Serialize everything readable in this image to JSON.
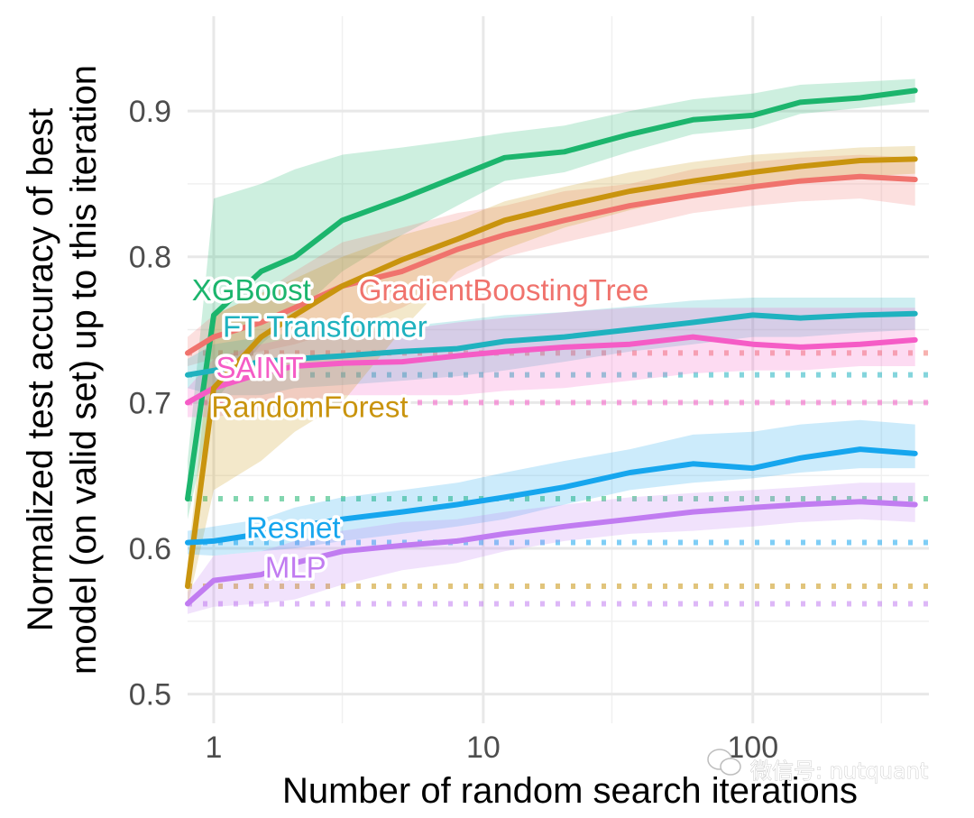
{
  "chart_data": {
    "type": "line",
    "title": "",
    "xlabel": "Number of random search iterations",
    "ylabel_lines": [
      "Normalized test accuracy of best",
      "model (on valid set) up to this iteration"
    ],
    "x_scale": "log",
    "xlim": [
      0.8,
      450
    ],
    "ylim": [
      0.48,
      0.965
    ],
    "x_ticks": [
      1,
      10,
      100
    ],
    "x_tick_labels": [
      "1",
      "10",
      "100"
    ],
    "y_ticks": [
      0.5,
      0.6,
      0.7,
      0.8,
      0.9
    ],
    "y_tick_labels": [
      "0.5",
      "0.6",
      "0.7",
      "0.8",
      "0.9"
    ],
    "grid": true,
    "legend": "direct labels",
    "series": [
      {
        "name": "XGBoost",
        "color": "#1cb56d",
        "baseline": 0.634,
        "x": [
          0.8,
          1,
          1.5,
          2,
          3,
          5,
          8,
          12,
          20,
          35,
          60,
          100,
          150,
          250,
          400
        ],
        "y": [
          0.634,
          0.76,
          0.79,
          0.8,
          0.825,
          0.84,
          0.855,
          0.868,
          0.872,
          0.884,
          0.894,
          0.897,
          0.906,
          0.909,
          0.914
        ],
        "lower": [
          0.62,
          0.7,
          0.74,
          0.76,
          0.79,
          0.815,
          0.835,
          0.852,
          0.858,
          0.872,
          0.884,
          0.888,
          0.898,
          0.902,
          0.906
        ],
        "upper": [
          0.66,
          0.84,
          0.85,
          0.86,
          0.87,
          0.875,
          0.88,
          0.885,
          0.89,
          0.9,
          0.908,
          0.912,
          0.918,
          0.92,
          0.922
        ],
        "label_at": [
          0.83,
          0.77
        ]
      },
      {
        "name": "GradientBoostingTree",
        "color": "#f0736d",
        "baseline": 0.734,
        "x": [
          0.8,
          1,
          1.5,
          2,
          3,
          5,
          8,
          12,
          20,
          35,
          60,
          100,
          150,
          250,
          400
        ],
        "y": [
          0.734,
          0.745,
          0.755,
          0.765,
          0.78,
          0.79,
          0.805,
          0.815,
          0.825,
          0.835,
          0.842,
          0.848,
          0.852,
          0.855,
          0.853
        ],
        "lower": [
          0.725,
          0.73,
          0.735,
          0.74,
          0.75,
          0.765,
          0.785,
          0.8,
          0.81,
          0.82,
          0.83,
          0.835,
          0.838,
          0.84,
          0.835
        ],
        "upper": [
          0.745,
          0.76,
          0.775,
          0.79,
          0.81,
          0.82,
          0.83,
          0.835,
          0.845,
          0.85,
          0.86,
          0.865,
          0.868,
          0.87,
          0.868
        ],
        "label_at": [
          3.45,
          0.77
        ]
      },
      {
        "name": "FT Transformer",
        "color": "#1fb2bf",
        "baseline": 0.719,
        "x": [
          0.8,
          1,
          1.5,
          2,
          3,
          5,
          8,
          12,
          20,
          35,
          60,
          100,
          150,
          250,
          400
        ],
        "y": [
          0.719,
          0.722,
          0.728,
          0.73,
          0.732,
          0.735,
          0.737,
          0.742,
          0.745,
          0.75,
          0.755,
          0.76,
          0.758,
          0.76,
          0.761
        ],
        "lower": [
          0.71,
          0.705,
          0.705,
          0.71,
          0.712,
          0.715,
          0.718,
          0.722,
          0.728,
          0.735,
          0.74,
          0.745,
          0.745,
          0.748,
          0.75
        ],
        "upper": [
          0.73,
          0.74,
          0.745,
          0.748,
          0.75,
          0.752,
          0.756,
          0.76,
          0.762,
          0.766,
          0.77,
          0.772,
          0.772,
          0.772,
          0.772
        ],
        "label_at": [
          1.08,
          0.745
        ]
      },
      {
        "name": "SAINT",
        "color": "#f55cc6",
        "baseline": 0.7,
        "x": [
          0.8,
          1,
          1.5,
          2,
          3,
          5,
          8,
          12,
          20,
          35,
          60,
          100,
          150,
          250,
          400
        ],
        "y": [
          0.7,
          0.71,
          0.72,
          0.725,
          0.727,
          0.728,
          0.732,
          0.735,
          0.738,
          0.74,
          0.745,
          0.74,
          0.738,
          0.74,
          0.743
        ],
        "lower": [
          0.69,
          0.69,
          0.695,
          0.7,
          0.705,
          0.705,
          0.705,
          0.708,
          0.71,
          0.715,
          0.72,
          0.722,
          0.722,
          0.725,
          0.725
        ],
        "upper": [
          0.71,
          0.73,
          0.74,
          0.745,
          0.748,
          0.75,
          0.755,
          0.758,
          0.762,
          0.765,
          0.765,
          0.765,
          0.765,
          0.765,
          0.765
        ],
        "label_at": [
          1.02,
          0.717
        ]
      },
      {
        "name": "RandomForest",
        "color": "#c9940e",
        "baseline": 0.574,
        "x": [
          0.8,
          1,
          1.5,
          2,
          3,
          5,
          8,
          12,
          20,
          35,
          60,
          100,
          150,
          250,
          400
        ],
        "y": [
          0.574,
          0.71,
          0.745,
          0.76,
          0.78,
          0.798,
          0.812,
          0.825,
          0.835,
          0.845,
          0.852,
          0.858,
          0.862,
          0.866,
          0.867
        ],
        "lower": [
          0.56,
          0.64,
          0.66,
          0.68,
          0.7,
          0.75,
          0.79,
          0.805,
          0.82,
          0.832,
          0.842,
          0.848,
          0.852,
          0.855,
          0.857
        ],
        "upper": [
          0.59,
          0.76,
          0.775,
          0.785,
          0.8,
          0.815,
          0.825,
          0.838,
          0.848,
          0.858,
          0.865,
          0.87,
          0.872,
          0.875,
          0.876
        ],
        "label_at": [
          0.98,
          0.69
        ]
      },
      {
        "name": "Resnet",
        "color": "#16a6ee",
        "baseline": 0.604,
        "x": [
          0.8,
          1,
          1.5,
          2,
          3,
          5,
          8,
          12,
          20,
          35,
          60,
          100,
          150,
          250,
          400
        ],
        "y": [
          0.604,
          0.605,
          0.61,
          0.615,
          0.62,
          0.625,
          0.63,
          0.635,
          0.642,
          0.652,
          0.658,
          0.655,
          0.662,
          0.668,
          0.665
        ],
        "lower": [
          0.596,
          0.595,
          0.598,
          0.6,
          0.605,
          0.61,
          0.615,
          0.62,
          0.63,
          0.64,
          0.645,
          0.648,
          0.652,
          0.655,
          0.655
        ],
        "upper": [
          0.612,
          0.615,
          0.62,
          0.628,
          0.635,
          0.64,
          0.645,
          0.652,
          0.66,
          0.668,
          0.678,
          0.68,
          0.685,
          0.688,
          0.685
        ],
        "label_at": [
          1.32,
          0.607
        ]
      },
      {
        "name": "MLP",
        "color": "#c17cf1",
        "baseline": 0.562,
        "x": [
          0.8,
          1,
          1.5,
          2,
          3,
          5,
          8,
          12,
          20,
          35,
          60,
          100,
          150,
          250,
          400
        ],
        "y": [
          0.562,
          0.578,
          0.582,
          0.59,
          0.598,
          0.602,
          0.605,
          0.61,
          0.615,
          0.62,
          0.625,
          0.628,
          0.63,
          0.632,
          0.63
        ],
        "lower": [
          0.555,
          0.56,
          0.562,
          0.565,
          0.575,
          0.585,
          0.59,
          0.598,
          0.605,
          0.61,
          0.612,
          0.615,
          0.618,
          0.62,
          0.618
        ],
        "upper": [
          0.57,
          0.595,
          0.598,
          0.605,
          0.612,
          0.618,
          0.62,
          0.625,
          0.63,
          0.635,
          0.638,
          0.64,
          0.642,
          0.645,
          0.645
        ],
        "label_at": [
          1.55,
          0.58
        ]
      }
    ]
  },
  "watermark": {
    "text": "微信号: nutquant"
  }
}
